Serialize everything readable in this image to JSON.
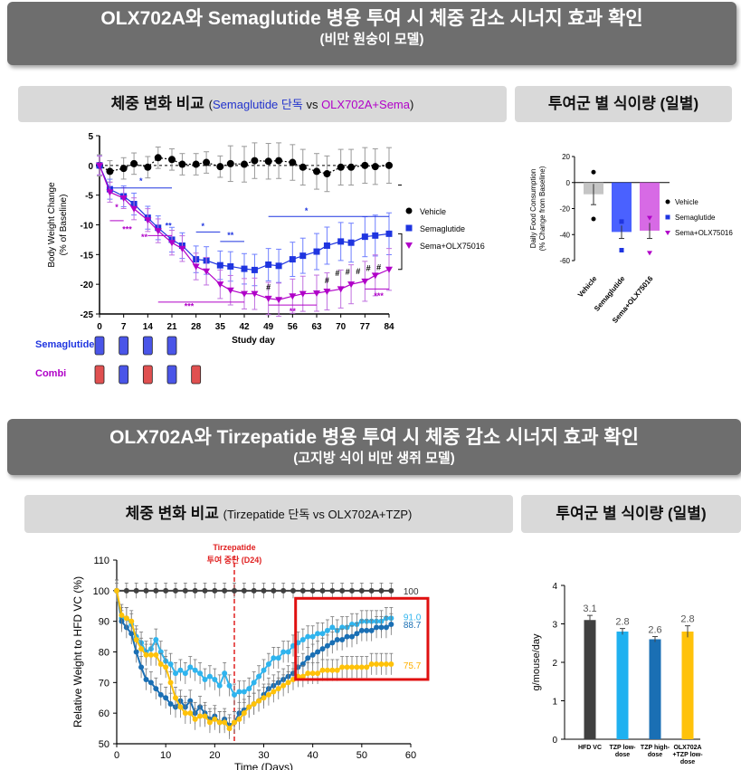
{
  "section1": {
    "title": "OLX702A와 Semaglutide 병용 투여 시 체중 감소 시너지 효과 확인",
    "subtitle": "(비만 원숭이 모델)",
    "left_header": {
      "main": "체중 변화 비교 ",
      "open": "(",
      "sema": "Semaglutide 단독",
      "vs": " vs ",
      "combo": "OLX702A+Sema",
      "close": ")"
    },
    "right_header": "투여군 별 식이량 (일별)"
  },
  "section2": {
    "title": "OLX702A와 Tirzepatide 병용 투여 시 체중 감소 시너지 효과 확인",
    "subtitle": "(고지방 식이 비만 생쥐 모델)",
    "left_header": {
      "main": "체중 변화 비교 ",
      "small": "(Tirzepatide 단독 vs OLX702A+TZP)"
    },
    "right_header": "투여군 별 식이량 (일별)"
  },
  "dosing": {
    "sema_label": "Semaglutide",
    "combi_label": "Combi"
  },
  "chart_data": [
    {
      "type": "line",
      "xlabel": "Study day",
      "ylabel": "Body Weight Change (% of Baseline)",
      "xlim": [
        0,
        84
      ],
      "ylim": [
        -25,
        5
      ],
      "xticks": [
        0,
        7,
        14,
        21,
        28,
        35,
        42,
        49,
        56,
        63,
        70,
        77,
        84
      ],
      "yticks": [
        5,
        0,
        -5,
        -10,
        -15,
        -20,
        -25
      ],
      "legend": "right",
      "series": [
        {
          "name": "Vehicle",
          "color": "#000000",
          "marker": "circle",
          "x": [
            0,
            3,
            7,
            10,
            14,
            17,
            21,
            24,
            28,
            31,
            35,
            38,
            42,
            45,
            49,
            52,
            56,
            59,
            63,
            66,
            70,
            73,
            77,
            80,
            84
          ],
          "y": [
            0,
            -1,
            -0.5,
            0.3,
            -0.3,
            1.3,
            1,
            0.2,
            0.2,
            0.5,
            -0.2,
            0.3,
            0.2,
            0.8,
            0.7,
            0.8,
            0.5,
            -0.3,
            -1,
            -1.4,
            -0.3,
            -0.3,
            0,
            -0.2,
            0
          ]
        },
        {
          "name": "Semaglutide",
          "color": "#1f35e0",
          "marker": "square",
          "x": [
            0,
            3,
            7,
            10,
            14,
            17,
            21,
            24,
            28,
            31,
            35,
            38,
            42,
            45,
            49,
            52,
            56,
            59,
            63,
            66,
            70,
            73,
            77,
            80,
            84
          ],
          "y": [
            0,
            -4,
            -5.2,
            -6.5,
            -8.8,
            -10.5,
            -12.5,
            -13.5,
            -15.8,
            -16,
            -16.8,
            -17,
            -17.4,
            -17.6,
            -16.7,
            -16.9,
            -15.8,
            -15.2,
            -14.5,
            -13.5,
            -12.8,
            -13,
            -12,
            -11.8,
            -11.5
          ]
        },
        {
          "name": "Sema+OLX75016",
          "color": "#b000c8",
          "marker": "triangle-down",
          "x": [
            0,
            3,
            7,
            10,
            14,
            17,
            21,
            24,
            28,
            31,
            35,
            38,
            42,
            45,
            49,
            52,
            56,
            59,
            63,
            66,
            70,
            73,
            77,
            80,
            84
          ],
          "y": [
            0,
            -4.5,
            -5.5,
            -7.3,
            -9.2,
            -11,
            -13,
            -14,
            -17,
            -17.8,
            -20,
            -21,
            -21.6,
            -21.6,
            -22.4,
            -22.6,
            -22,
            -21.6,
            -21.5,
            -21.2,
            -20.8,
            -20,
            -19.5,
            -18.5,
            -17.5
          ]
        }
      ],
      "sig_labels": [
        "*",
        "*",
        "**",
        "*",
        "**",
        "*",
        "***",
        "**",
        "***",
        "**",
        "#",
        "#",
        "#",
        "#",
        "#",
        "#",
        "#",
        "***"
      ]
    },
    {
      "type": "bar",
      "ylabel": "Daily Food Consumption (% Change from Baseline)",
      "categories": [
        "Vehicle",
        "Semaglutide",
        "Sema+OLX75016"
      ],
      "values": [
        -9,
        -38,
        -37
      ],
      "errors": [
        8,
        5,
        6
      ],
      "points": [
        [
          8,
          -28
        ],
        [
          -30,
          -52
        ],
        [
          -27,
          -54
        ]
      ],
      "ylim": [
        -60,
        20
      ],
      "yticks": [
        20,
        0,
        -20,
        -40,
        -60
      ],
      "legend_labels": [
        "Vehicle",
        "Semaglutide",
        "Sema+OLX75016"
      ],
      "colors": [
        "#bbbbbb",
        "#2a45ff",
        "#d050e0"
      ]
    },
    {
      "type": "line",
      "title": "Tirzepatide\n투여 중단 (D24)",
      "title_line1": "Tirzepatide",
      "title_line2": "투여 중단 (D24)",
      "xlabel": "Time (Days)",
      "ylabel": "Relative Weight to HFD VC (%)",
      "xlim": [
        0,
        60
      ],
      "ylim": [
        50,
        110
      ],
      "xticks": [
        0,
        10,
        20,
        30,
        40,
        50,
        60
      ],
      "yticks": [
        50,
        60,
        70,
        80,
        90,
        100,
        110
      ],
      "end_labels": [
        "100",
        "91.0",
        "88.7",
        "75.7"
      ],
      "series": [
        {
          "name": "HFD VC",
          "color": "#404040",
          "x": [
            0,
            2,
            4,
            6,
            8,
            10,
            12,
            14,
            16,
            18,
            20,
            22,
            24,
            26,
            28,
            30,
            32,
            34,
            36,
            38,
            40,
            42,
            44,
            46,
            48,
            50,
            52,
            54,
            56
          ],
          "y": [
            100,
            100,
            100,
            100,
            100,
            100,
            100,
            100,
            100,
            100,
            100,
            100,
            100,
            100,
            100,
            100,
            100,
            100,
            100,
            100,
            100,
            100,
            100,
            100,
            100,
            100,
            100,
            100,
            100
          ]
        },
        {
          "name": "TZP low-dose",
          "color": "#2fb4ee",
          "x": [
            0,
            1,
            2,
            3,
            4,
            5,
            6,
            7,
            8,
            9,
            10,
            11,
            12,
            13,
            14,
            15,
            16,
            17,
            18,
            19,
            20,
            21,
            22,
            23,
            24,
            25,
            26,
            27,
            28,
            29,
            30,
            31,
            32,
            33,
            34,
            35,
            36,
            37,
            38,
            39,
            40,
            41,
            42,
            43,
            44,
            45,
            46,
            47,
            48,
            49,
            50,
            51,
            52,
            53,
            54,
            55,
            56
          ],
          "y": [
            100,
            91,
            91,
            89,
            85,
            83,
            80,
            81,
            84,
            80,
            77,
            76,
            73,
            74,
            73,
            75,
            74,
            73,
            71,
            72,
            71,
            69,
            73,
            69,
            66,
            67,
            67,
            68,
            70,
            72,
            74,
            76,
            78,
            78,
            80,
            80,
            82,
            83,
            84,
            85,
            85,
            86,
            86,
            87,
            88,
            87,
            88,
            88,
            89,
            89,
            90,
            90,
            90,
            90,
            90,
            91,
            91
          ]
        },
        {
          "name": "TZP high-dose",
          "color": "#1a6fb4",
          "x": [
            0,
            1,
            2,
            3,
            4,
            5,
            6,
            7,
            8,
            9,
            10,
            11,
            12,
            13,
            14,
            15,
            16,
            17,
            18,
            19,
            20,
            21,
            22,
            23,
            24,
            25,
            26,
            27,
            28,
            29,
            30,
            31,
            32,
            33,
            34,
            35,
            36,
            37,
            38,
            39,
            40,
            41,
            42,
            43,
            44,
            45,
            46,
            47,
            48,
            49,
            50,
            51,
            52,
            53,
            54,
            55,
            56
          ],
          "y": [
            100,
            90,
            88,
            86,
            80,
            75,
            71,
            70,
            68,
            66,
            65,
            63,
            62,
            64,
            62,
            64,
            60,
            62,
            60,
            58,
            59,
            57,
            58,
            56,
            57,
            60,
            61,
            62,
            63,
            64,
            66,
            68,
            69,
            70,
            71,
            72,
            73,
            75,
            76,
            78,
            79,
            80,
            81,
            82,
            83,
            84,
            84,
            85,
            85,
            86,
            87,
            87,
            87,
            88,
            88,
            88,
            89
          ]
        },
        {
          "name": "OLX702A+TZP low-dose",
          "color": "#ffc20a",
          "x": [
            0,
            1,
            2,
            3,
            4,
            5,
            6,
            7,
            8,
            9,
            10,
            11,
            12,
            13,
            14,
            15,
            16,
            17,
            18,
            19,
            20,
            21,
            22,
            23,
            24,
            25,
            26,
            27,
            28,
            29,
            30,
            31,
            32,
            33,
            34,
            35,
            36,
            37,
            38,
            39,
            40,
            41,
            42,
            43,
            44,
            45,
            46,
            47,
            48,
            49,
            50,
            51,
            52,
            53,
            54,
            55,
            56
          ],
          "y": [
            100,
            92,
            91,
            90,
            84,
            81,
            79,
            79,
            79,
            76,
            75,
            70,
            65,
            62,
            60,
            60,
            58,
            59,
            59,
            57,
            58,
            57,
            57,
            55,
            57,
            58,
            60,
            62,
            63,
            64,
            65,
            66,
            67,
            68,
            69,
            70,
            71,
            72,
            72,
            73,
            73,
            73,
            74,
            74,
            74,
            74,
            75,
            75,
            75,
            75,
            75,
            75,
            76,
            76,
            76,
            76,
            76
          ]
        }
      ]
    },
    {
      "type": "bar",
      "ylabel": "g/mouse/day",
      "categories": [
        "HFD VC",
        "TZP low-dose",
        "TZP high-dose",
        "OLX702A +TZP low-dose"
      ],
      "category_lines": [
        [
          "HFD VC"
        ],
        [
          "TZP low-",
          "dose"
        ],
        [
          "TZP high-",
          "dose"
        ],
        [
          "OLX702A",
          "+TZP low-",
          "dose"
        ]
      ],
      "values": [
        3.1,
        2.8,
        2.6,
        2.8
      ],
      "value_labels": [
        "3.1",
        "2.8",
        "2.6",
        "2.8"
      ],
      "errors": [
        0.12,
        0.08,
        0.07,
        0.15
      ],
      "ylim": [
        0,
        4
      ],
      "yticks": [
        0,
        1,
        2,
        3,
        4
      ],
      "colors": [
        "#404040",
        "#1fb1f0",
        "#1a6fb4",
        "#ffc20a"
      ]
    }
  ]
}
